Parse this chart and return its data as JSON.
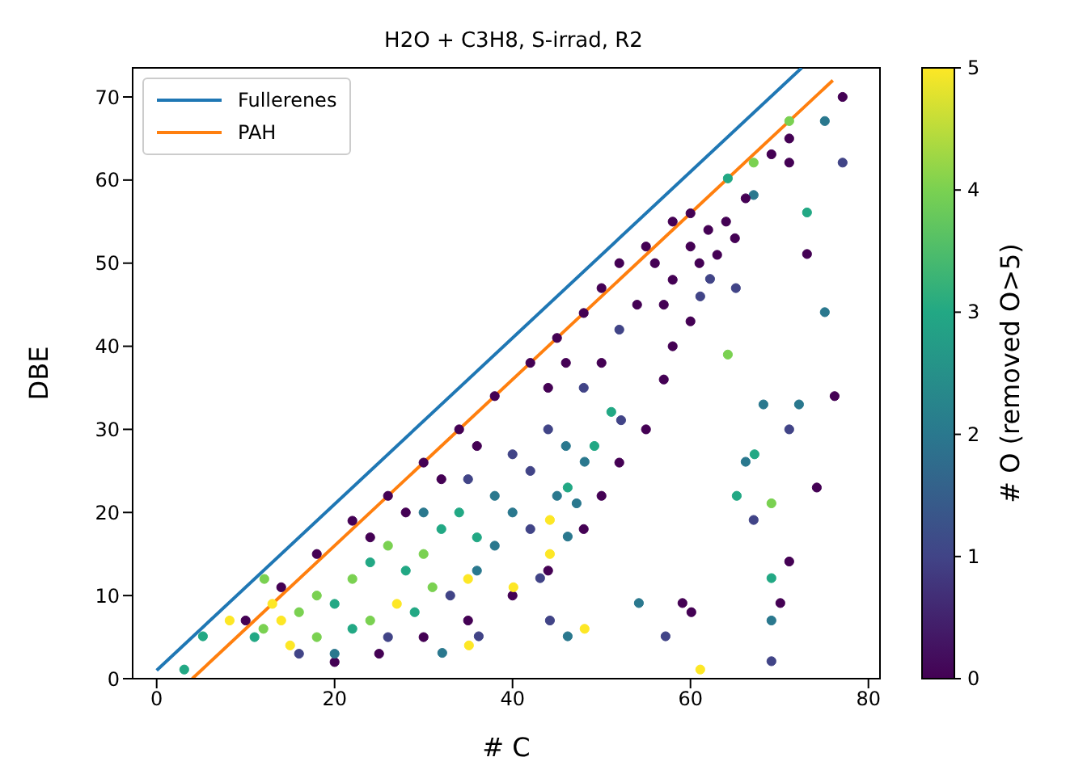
{
  "chart_data": {
    "type": "scatter",
    "title": "H2O + C3H8, S-irrad, R2",
    "xlabel": "# C",
    "ylabel": "DBE",
    "clabel": "# O (removed O>5)",
    "xlim": [
      -2.7,
      81.3
    ],
    "ylim": [
      0,
      73.5
    ],
    "xticks": [
      0,
      20,
      40,
      60,
      80
    ],
    "yticks": [
      0,
      10,
      20,
      30,
      40,
      50,
      60,
      70
    ],
    "clim": [
      0,
      5
    ],
    "cticks": [
      0,
      1,
      2,
      3,
      4,
      5
    ],
    "legend": "top left",
    "line_style": "solid",
    "series": [
      {
        "marker": "circle",
        "colors": [
          "#440154",
          "#440154",
          "#440154",
          "#440154",
          "#440154",
          "#440154",
          "#440154",
          "#440154",
          "#440154",
          "#440154",
          "#440154",
          "#440154",
          "#440154",
          "#440154",
          "#440154",
          "#440154",
          "#440154",
          "#440154",
          "#440154",
          "#440154",
          "#440154",
          "#440154",
          "#440154",
          "#440154",
          "#440154",
          "#440154",
          "#440154",
          "#7ad151",
          "#fde725",
          "#7ad151",
          "#7ad151",
          "#22a884",
          "#7ad151",
          "#22a884",
          "#7ad151",
          "#22a884",
          "#7ad151",
          "#22a884",
          "#22a884",
          "#22a884",
          "#fde725",
          "#fde725",
          "#22a884",
          "#7ad151",
          "#22a884",
          "#7ad151",
          "#fde725",
          "#7ad151",
          "#fde725",
          "#22a884",
          "#2a788e",
          "#414487",
          "#2a788e",
          "#414487",
          "#414487",
          "#414487",
          "#2a788e",
          "#2a788e",
          "#2a788e",
          "#414487",
          "#2a788e",
          "#414487",
          "#2a788e",
          "#414487",
          "#2a788e",
          "#414487",
          "#414487",
          "#440154",
          "#414487",
          "#440154",
          "#440154",
          "#440154",
          "#440154",
          "#440154",
          "#440154",
          "#440154",
          "#22a884",
          "#7ad151",
          "#2a788e",
          "#440154",
          "#440154",
          "#440154",
          "#440154",
          "#414487",
          "#7ad151",
          "#22a884",
          "#440154",
          "#2a788e",
          "#7ad151",
          "#2a788e",
          "#440154",
          "#414487",
          "#414487",
          "#414487",
          "#440154",
          "#440154",
          "#440154",
          "#440154",
          "#440154",
          "#440154",
          "#440154",
          "#440154",
          "#440154",
          "#440154",
          "#440154",
          "#440154",
          "#2a788e",
          "#2a788e",
          "#414487",
          "#22a884",
          "#2a788e",
          "#440154",
          "#22a884",
          "#7ad151",
          "#414487",
          "#440154",
          "#22a884",
          "#440154",
          "#2a788e",
          "#414487",
          "#fde725",
          "#440154",
          "#440154",
          "#2a788e",
          "#414487",
          "#fde725",
          "#2a788e",
          "#414487",
          "#2a788e",
          "#22a884",
          "#22a884",
          "#2a788e",
          "#fde725",
          "#2a788e",
          "#fde725",
          "#fde725",
          "#414487",
          "#22a884",
          "#414487",
          "#fde725",
          "#414487",
          "#2a788e",
          "#22a884",
          "#22a884",
          "#fde725",
          "#7ad151"
        ],
        "x": [
          10,
          14,
          18,
          22,
          26,
          30,
          34,
          38,
          42,
          45,
          48,
          50,
          52,
          55,
          20,
          25,
          30,
          35,
          40,
          44,
          48,
          50,
          52,
          55,
          57,
          58,
          60,
          12,
          14,
          16,
          18,
          20,
          22,
          24,
          26,
          28,
          30,
          32,
          34,
          36,
          27,
          35,
          29,
          31,
          22,
          18,
          15,
          24,
          13,
          11,
          30,
          35,
          38,
          40,
          42,
          44,
          46,
          38,
          40,
          42,
          45,
          33,
          36,
          26,
          20,
          16,
          48,
          50,
          52,
          54,
          46,
          44,
          36,
          32,
          28,
          24,
          64.2,
          71.1,
          75.1,
          77.1,
          71.1,
          69.1,
          71.1,
          77.1,
          67.1,
          73.1,
          73.1,
          75.1,
          64.2,
          67.1,
          66.2,
          65.1,
          62.2,
          61.1,
          56,
          58,
          60,
          61,
          62,
          60,
          58,
          64,
          65,
          63,
          57,
          76.2,
          68.2,
          72.2,
          71.1,
          67.2,
          66.2,
          74.2,
          65.2,
          69.1,
          67.1,
          71.1,
          69.1,
          70.1,
          69.1,
          69.1,
          61.1,
          59.1,
          60.1,
          54.2,
          57.2,
          48.1,
          46.2,
          44.2,
          48.1,
          49.2,
          46.2,
          47.2,
          44.2,
          46.2,
          44.2,
          40.1,
          43.1,
          51.1,
          52.2,
          35.1,
          36.2,
          32.1,
          3.1,
          5.2,
          8.2,
          12.1
        ],
        "values": [
          7,
          11,
          15,
          19,
          22,
          26,
          30,
          34,
          38,
          41,
          44,
          47,
          50,
          52,
          2,
          3,
          5,
          7,
          10,
          13,
          18,
          22,
          26,
          30,
          36,
          40,
          43,
          6,
          7,
          8,
          10,
          9,
          12,
          14,
          16,
          13,
          15,
          18,
          20,
          17,
          9,
          12,
          8,
          11,
          6,
          5,
          4,
          7,
          9,
          5,
          20,
          24,
          22,
          27,
          25,
          30,
          28,
          16,
          20,
          18,
          22,
          10,
          13,
          5,
          3,
          3,
          35,
          38,
          42,
          45,
          38,
          35,
          28,
          24,
          20,
          17,
          60.2,
          67.1,
          67.1,
          70,
          65,
          63.1,
          62.1,
          62.1,
          62.1,
          56.1,
          51.1,
          44.1,
          39,
          58.2,
          57.8,
          47,
          48.1,
          46,
          50,
          48,
          52,
          50,
          54,
          56,
          55,
          55,
          53,
          51,
          45,
          34,
          33,
          33,
          30,
          27,
          26.1,
          23,
          22,
          21.1,
          19.1,
          14.1,
          12.1,
          9.1,
          7,
          2.1,
          1.1,
          9.1,
          8,
          9.1,
          5.1,
          6,
          5.1,
          7,
          26.1,
          28,
          23,
          21.1,
          19.1,
          17.1,
          15,
          11,
          12.1,
          32.1,
          31.1,
          4,
          5.1,
          3.1,
          1.1,
          5.1,
          7,
          12
        ],
        "cvalues": [
          0,
          0,
          0,
          0,
          0,
          0,
          0,
          0,
          0,
          0,
          0,
          0,
          0,
          0,
          0,
          0,
          0,
          0,
          0,
          0,
          0,
          0,
          0,
          0,
          0,
          0,
          0,
          4,
          5,
          4,
          4,
          3,
          4,
          3,
          4,
          3,
          4,
          3,
          3,
          3,
          5,
          5,
          3,
          4,
          3,
          4,
          5,
          4,
          5,
          3,
          2,
          1,
          2,
          1,
          1,
          1,
          2,
          2,
          2,
          1,
          2,
          1,
          2,
          1,
          2,
          1,
          1,
          0,
          1,
          0,
          0,
          0,
          0,
          0,
          0,
          0,
          3,
          4,
          2,
          0,
          0,
          0,
          0,
          1,
          4,
          3,
          0,
          2,
          4,
          2,
          0,
          1,
          1,
          1,
          0,
          0,
          0,
          0,
          0,
          0,
          0,
          0,
          0,
          0,
          0,
          0,
          2,
          2,
          1,
          3,
          2,
          0,
          3,
          4,
          1,
          0,
          3,
          0,
          2,
          1,
          5,
          0,
          0,
          2,
          1,
          5,
          2,
          1,
          2,
          3,
          3,
          2,
          5,
          2,
          5,
          5,
          1,
          3,
          1,
          5,
          1,
          2,
          3,
          3,
          5,
          4
        ]
      },
      {
        "type": "line",
        "marker": "none",
        "name": "Fullerenes",
        "color": "#1f77b4",
        "x": [
          0,
          72.5
        ],
        "values": [
          1,
          73.5
        ]
      },
      {
        "type": "line",
        "marker": "none",
        "name": "PAH",
        "color": "#ff7f0e",
        "x": [
          4,
          76
        ],
        "values": [
          0,
          72
        ]
      }
    ]
  }
}
